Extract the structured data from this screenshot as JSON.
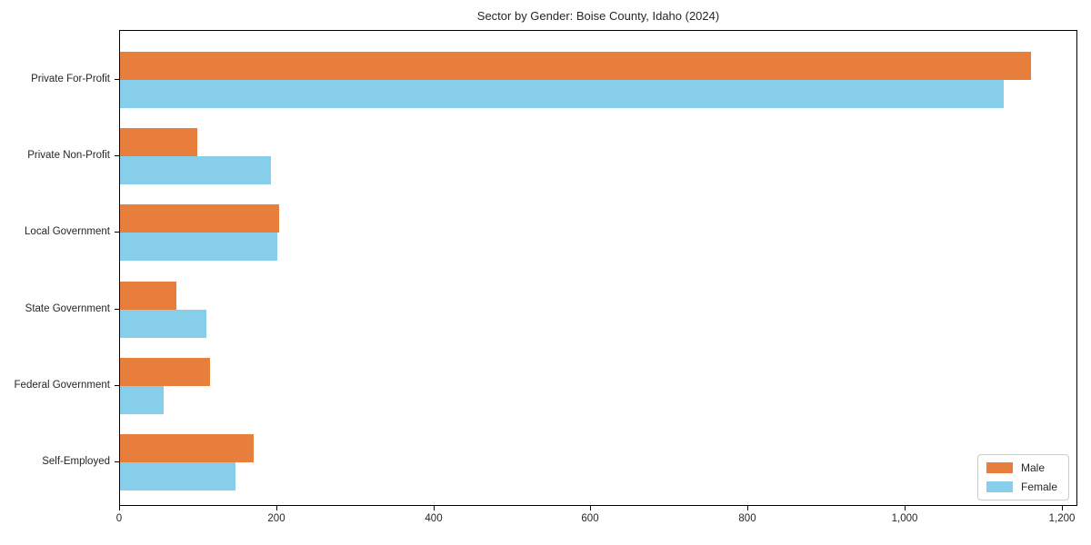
{
  "chart_data": {
    "type": "bar",
    "orientation": "horizontal",
    "title": "Sector by Gender: Boise County, Idaho (2024)",
    "categories": [
      "Private For-Profit",
      "Private Non-Profit",
      "Local Government",
      "State Government",
      "Federal Government",
      "Self-Employed"
    ],
    "series": [
      {
        "name": "Male",
        "color": "#e87e3c",
        "values": [
          1160,
          98,
          203,
          72,
          115,
          170
        ]
      },
      {
        "name": "Female",
        "color": "#87ceeb",
        "values": [
          1125,
          192,
          200,
          110,
          55,
          147
        ]
      }
    ],
    "xlabel": "",
    "ylabel": "",
    "xlim": [
      0,
      1220
    ],
    "x_ticks": [
      0,
      200,
      400,
      600,
      800,
      1000,
      1200
    ],
    "x_tick_labels": [
      "0",
      "200",
      "400",
      "600",
      "800",
      "1,000",
      "1,200"
    ],
    "grid": false,
    "legend": {
      "position": "lower right",
      "entries": [
        "Male",
        "Female"
      ]
    },
    "colors": {
      "male_bar": "#e87e3c",
      "female_bar": "#87ceeb",
      "axis": "#000000",
      "text": "#262626",
      "legend_border": "#cccccc"
    }
  }
}
